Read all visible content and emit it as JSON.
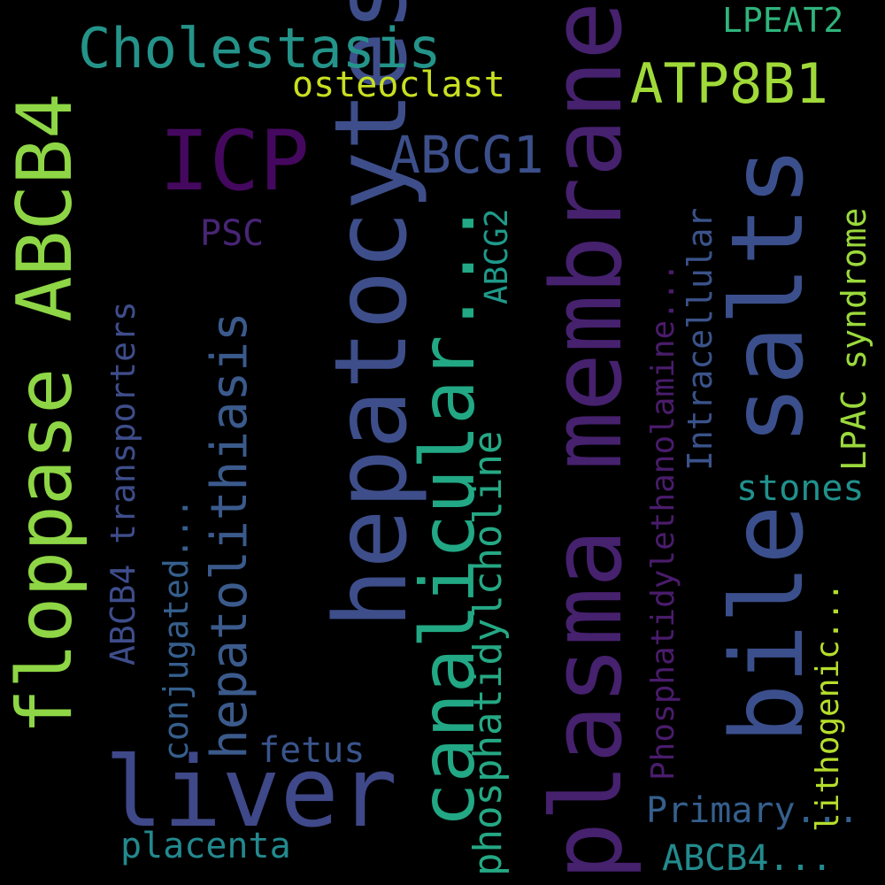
{
  "words": [
    {
      "text": "hepatocytes",
      "color": "#3e4e8a"
    },
    {
      "text": "plasma membrane",
      "color": "#46216e"
    },
    {
      "text": "bile salts",
      "color": "#3b4f8c"
    },
    {
      "text": "floppase ABCB4",
      "color": "#8ed645"
    },
    {
      "text": "canalicular...",
      "color": "#22a884"
    },
    {
      "text": "liver",
      "color": "#3f4888"
    },
    {
      "text": "ICP",
      "color": "#45085f"
    },
    {
      "text": "Cholestasis",
      "color": "#24948a"
    },
    {
      "text": "ATP8B1",
      "color": "#a0da39"
    },
    {
      "text": "ABCG1",
      "color": "#3c4f8a"
    },
    {
      "text": "hepatolithiasis",
      "color": "#3b5a8c"
    },
    {
      "text": "phosphatidylcholine",
      "color": "#25a884"
    },
    {
      "text": "osteoclast",
      "color": "#c8e020"
    },
    {
      "text": "LPEAT2",
      "color": "#2fb47c"
    },
    {
      "text": "PSC",
      "color": "#482576"
    },
    {
      "text": "ABCG2",
      "color": "#1f9a8a"
    },
    {
      "text": "Phosphatidylethanolamine...",
      "color": "#4a1c6c"
    },
    {
      "text": "Intracellular",
      "color": "#3b538b"
    },
    {
      "text": "LPAC syndrome",
      "color": "#9bd93c"
    },
    {
      "text": "ABCB4 transporters",
      "color": "#3e4d8a"
    },
    {
      "text": "conjugated...",
      "color": "#355f8d"
    },
    {
      "text": "stones",
      "color": "#21918c"
    },
    {
      "text": "lithogenic...",
      "color": "#b5de2b"
    },
    {
      "text": "fetus",
      "color": "#3a548c"
    },
    {
      "text": "Primary...",
      "color": "#355f8d"
    },
    {
      "text": "placenta",
      "color": "#23898e"
    },
    {
      "text": "ABCB4...",
      "color": "#238a8d"
    }
  ]
}
